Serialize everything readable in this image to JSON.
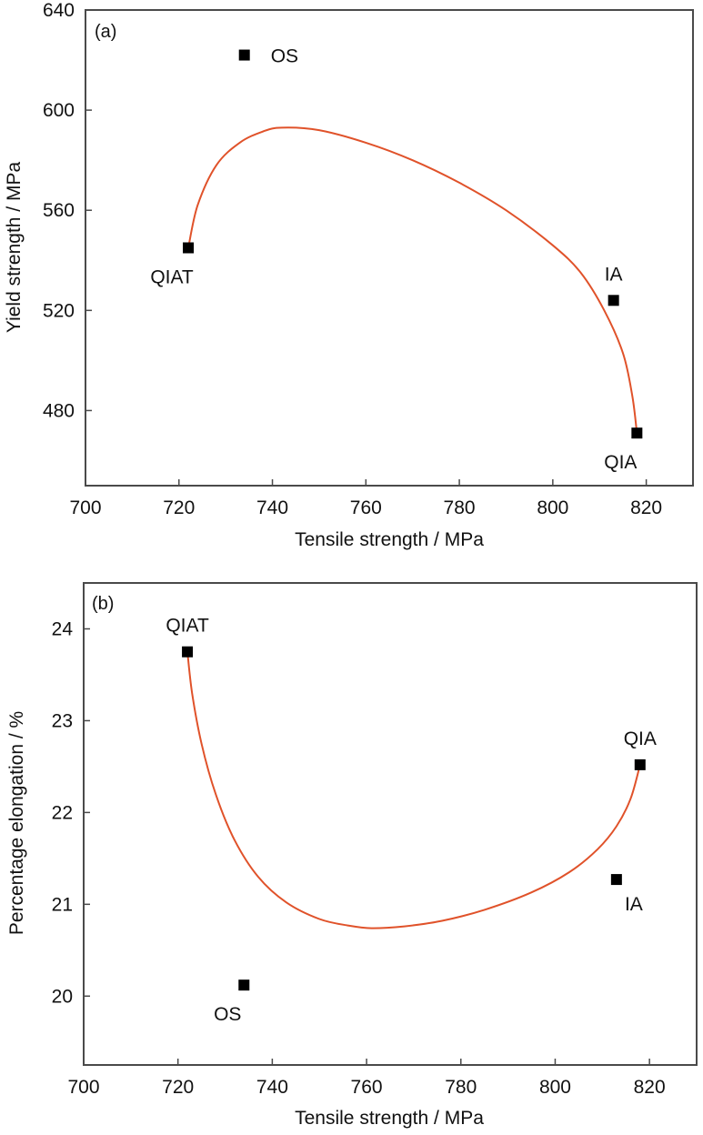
{
  "chart_data": [
    {
      "type": "scatter",
      "panel_label": "(a)",
      "title": "",
      "xlabel": "Tensile strength / MPa",
      "ylabel": "Yield strength / MPa",
      "xlim": [
        700,
        830
      ],
      "ylim": [
        450,
        640
      ],
      "xticks": [
        700,
        720,
        740,
        760,
        780,
        800,
        820
      ],
      "yticks": [
        480,
        520,
        560,
        600,
        640
      ],
      "grid": false,
      "legend": "none",
      "points": [
        {
          "label": "OS",
          "x": 734,
          "y": 622,
          "label_pos": "right"
        },
        {
          "label": "QIAT",
          "x": 722,
          "y": 545,
          "label_pos": "below-left"
        },
        {
          "label": "IA",
          "x": 813,
          "y": 524,
          "label_pos": "above"
        },
        {
          "label": "QIA",
          "x": 818,
          "y": 471,
          "label_pos": "below-left"
        }
      ],
      "trend_curve": {
        "color": "#e0522a",
        "description": "smooth guide curve from QIAT through a maximum to QIA",
        "x": [
          722,
          724,
          728,
          733,
          738,
          742,
          750,
          760,
          770,
          780,
          790,
          800,
          806,
          811,
          815,
          817,
          818
        ],
        "y": [
          545,
          562,
          578,
          587,
          591.5,
          593,
          592,
          587,
          580,
          571,
          560,
          546,
          535,
          520,
          503,
          486,
          471
        ]
      }
    },
    {
      "type": "scatter",
      "panel_label": "(b)",
      "title": "",
      "xlabel": "Tensile strength / MPa",
      "ylabel": "Percentage elongation / %",
      "xlim": [
        700,
        830
      ],
      "ylim": [
        19.25,
        24.5
      ],
      "xticks": [
        700,
        720,
        740,
        760,
        780,
        800,
        820
      ],
      "yticks": [
        20,
        21,
        22,
        23,
        24
      ],
      "grid": false,
      "legend": "none",
      "points": [
        {
          "label": "QIAT",
          "x": 722,
          "y": 23.75,
          "label_pos": "above"
        },
        {
          "label": "QIA",
          "x": 818,
          "y": 22.52,
          "label_pos": "above"
        },
        {
          "label": "IA",
          "x": 813,
          "y": 21.27,
          "label_pos": "below"
        },
        {
          "label": "OS",
          "x": 734,
          "y": 20.12,
          "label_pos": "below-left"
        }
      ],
      "trend_curve": {
        "color": "#e0522a",
        "description": "smooth guide curve from QIAT through a minimum to QIA",
        "x": [
          722,
          723,
          725,
          728,
          732,
          737,
          743,
          750,
          756,
          761,
          768,
          776,
          785,
          795,
          803,
          809,
          813,
          816,
          818
        ],
        "y": [
          23.75,
          23.3,
          22.75,
          22.2,
          21.7,
          21.3,
          21.02,
          20.84,
          20.77,
          20.74,
          20.76,
          20.82,
          20.94,
          21.13,
          21.35,
          21.6,
          21.85,
          22.15,
          22.52
        ]
      }
    }
  ]
}
